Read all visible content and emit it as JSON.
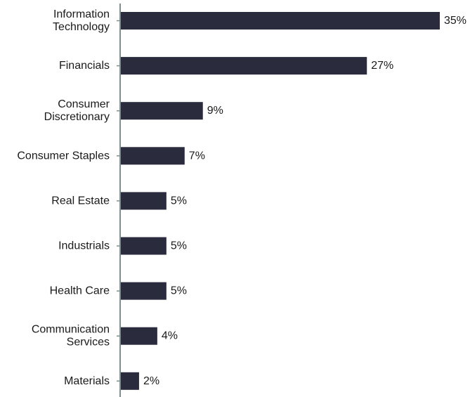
{
  "chart_data": {
    "type": "bar",
    "orientation": "horizontal",
    "categories": [
      [
        "Information",
        "Technology"
      ],
      [
        "Financials"
      ],
      [
        "Consumer",
        "Discretionary"
      ],
      [
        "Consumer Staples"
      ],
      [
        "Real Estate"
      ],
      [
        "Industrials"
      ],
      [
        "Health Care"
      ],
      [
        "Communication",
        "Services"
      ],
      [
        "Materials"
      ]
    ],
    "values": [
      35,
      27,
      9,
      7,
      5,
      5,
      5,
      4,
      2
    ],
    "value_labels": [
      "35%",
      "27%",
      "9%",
      "7%",
      "5%",
      "5%",
      "5%",
      "4%",
      "2%"
    ],
    "unit": "%",
    "xlim": [
      0,
      35
    ],
    "grid": false,
    "legend": "none",
    "colors": {
      "bar": "#2a2b3d",
      "axis": "#7f8e8e",
      "text": "#1a1a1a"
    }
  }
}
